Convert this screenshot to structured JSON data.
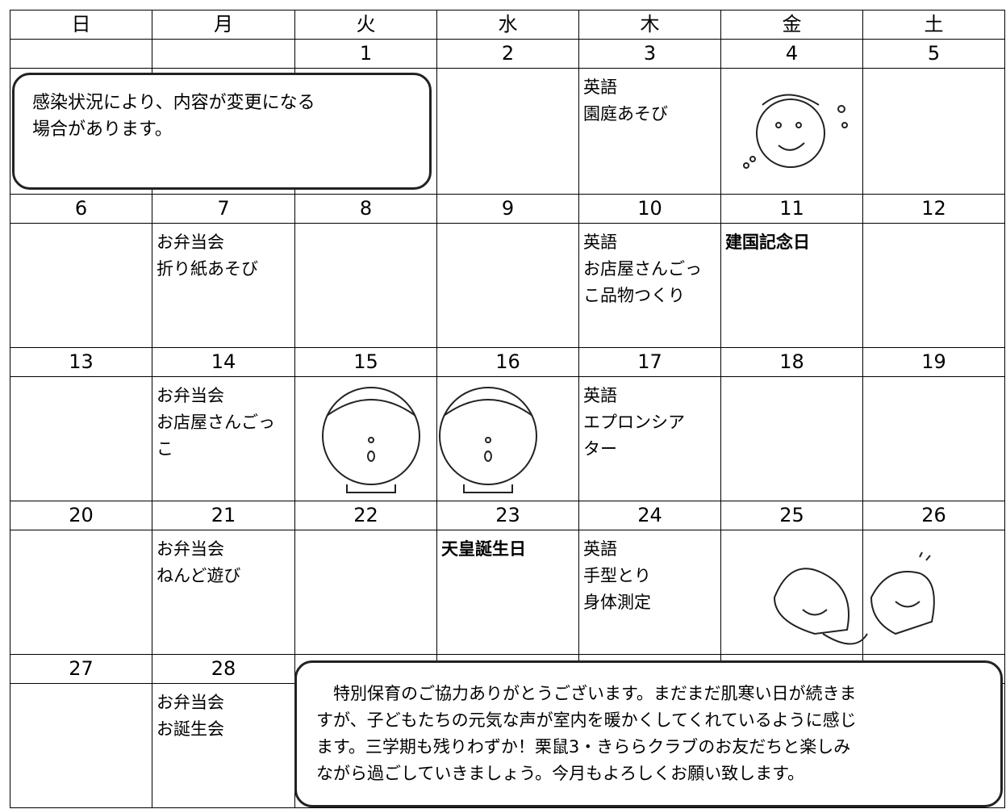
{
  "weekdays": [
    "日",
    "月",
    "火",
    "水",
    "木",
    "金",
    "土"
  ],
  "weeks": [
    {
      "days": [
        {
          "date": null
        },
        {
          "date": null
        },
        {
          "date": 1
        },
        {
          "date": 2
        },
        {
          "date": 3,
          "events": [
            "英語",
            "園庭あそび"
          ]
        },
        {
          "date": 4
        },
        {
          "date": 5
        }
      ]
    },
    {
      "days": [
        {
          "date": 6
        },
        {
          "date": 7,
          "events": [
            "お弁当会",
            "折り紙あそび"
          ]
        },
        {
          "date": 8
        },
        {
          "date": 9
        },
        {
          "date": 10,
          "events": [
            "英語",
            "お店屋さんごっ",
            "こ品物つくり"
          ]
        },
        {
          "date": 11,
          "holiday": "建国記念日"
        },
        {
          "date": 12
        }
      ]
    },
    {
      "days": [
        {
          "date": 13
        },
        {
          "date": 14,
          "events": [
            "お弁当会",
            "お店屋さんごっ",
            "こ"
          ]
        },
        {
          "date": 15
        },
        {
          "date": 16
        },
        {
          "date": 17,
          "events": [
            "英語",
            "エプロンシア",
            "ター"
          ]
        },
        {
          "date": 18
        },
        {
          "date": 19
        }
      ]
    },
    {
      "days": [
        {
          "date": 20
        },
        {
          "date": 21,
          "events": [
            "お弁当会",
            "ねんど遊び"
          ]
        },
        {
          "date": 22
        },
        {
          "date": 23,
          "holiday": "天皇誕生日"
        },
        {
          "date": 24,
          "events": [
            "英語",
            "手型とり",
            "身体測定"
          ]
        },
        {
          "date": 25
        },
        {
          "date": 26
        }
      ]
    },
    {
      "days": [
        {
          "date": 27
        },
        {
          "date": 28,
          "events": [
            "お弁当会",
            "お誕生会"
          ]
        }
      ]
    }
  ],
  "notes": {
    "top": [
      "感染状況により、内容が変更になる",
      "場合があります。"
    ],
    "bottom": [
      "特別保育のご協力ありがとうございます。まだまだ肌寒い日が続きま",
      "すが、子どもたちの元気な声が室内を暖かくしてくれているように感じ",
      "ます。三学期も残りわずか！栗鼠3・きららクラブのお友だちと楽しみ",
      "ながら過ごしていきましょう。今月もよろしくお願い致します。"
    ]
  }
}
